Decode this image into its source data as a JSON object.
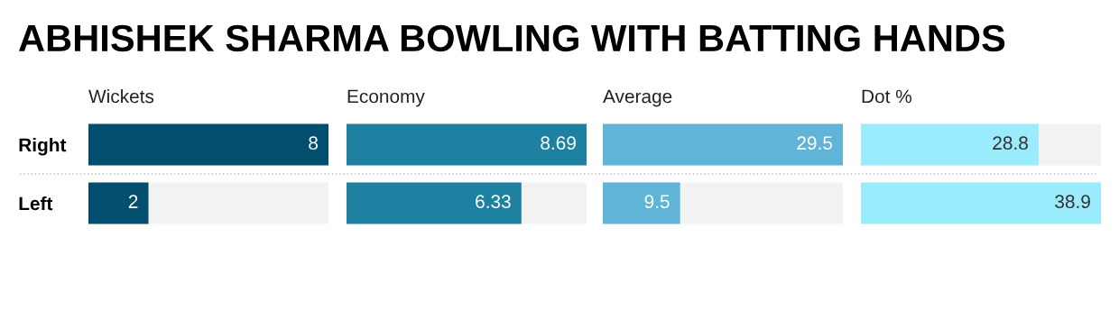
{
  "chart_data": [
    {
      "type": "other",
      "title": "ABHISHEK SHARMA BOWLING WITH BATTING HANDS"
    },
    {
      "type": "bar",
      "orientation": "horizontal",
      "title": "Wickets",
      "categories": [
        "Right",
        "Left"
      ],
      "values": [
        8,
        2
      ],
      "color": "#024e6e",
      "data_labels": true,
      "tick_labels": "y"
    },
    {
      "type": "bar",
      "orientation": "horizontal",
      "title": "Economy",
      "categories": [
        null,
        null
      ],
      "values": [
        8.69,
        6.33
      ],
      "color": "#1e81a1",
      "data_labels": true,
      "tick_labels": false
    },
    {
      "type": "bar",
      "orientation": "horizontal",
      "title": "Average",
      "categories": [
        null,
        null
      ],
      "values": [
        29.5,
        9.5
      ],
      "color": "#5fb4d8",
      "data_labels": true,
      "tick_labels": false
    },
    {
      "type": "bar",
      "orientation": "horizontal",
      "title": "Dot %",
      "categories": [
        null,
        null
      ],
      "values": [
        28.8,
        38.9
      ],
      "color": "#9aebfc",
      "data_labels": true,
      "tick_labels": false
    }
  ]
}
